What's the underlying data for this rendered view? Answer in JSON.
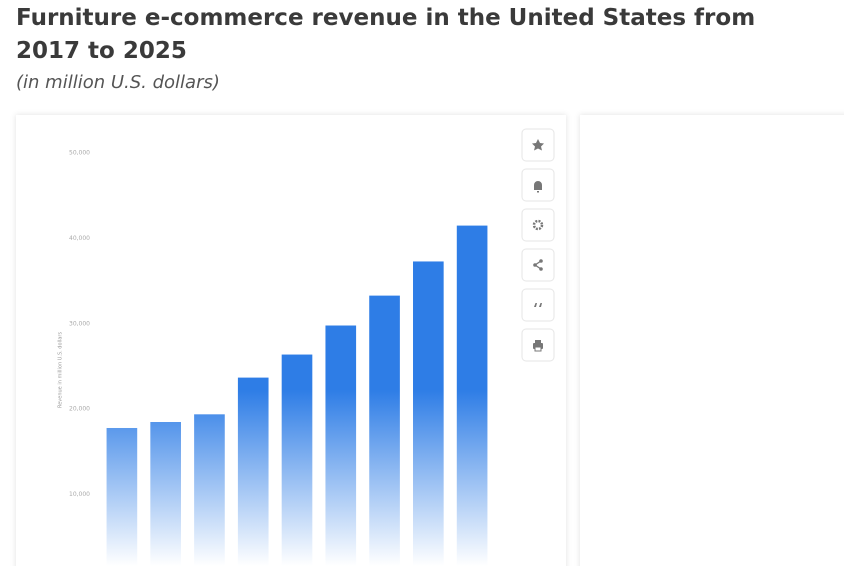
{
  "chart_data": {
    "type": "bar",
    "title": "Furniture e-commerce revenue in the United States from 2017 to 2025",
    "subtitle": "(in million U.S. dollars)",
    "y_label": "Revenue in million U.S. dollars",
    "categories": [
      null,
      null,
      null,
      null,
      null,
      null,
      null,
      null,
      null
    ],
    "values": [
      17800,
      18500,
      19400,
      23700,
      26400,
      29800,
      33300,
      37300,
      41500
    ],
    "color": "#2e7de6",
    "ylim": [
      0,
      50000
    ],
    "yticks": [
      {
        "value": 10000,
        "label": "10,000"
      },
      {
        "value": 20000,
        "label": "20,000"
      },
      {
        "value": 30000,
        "label": "30,000"
      },
      {
        "value": 40000,
        "label": "40,000"
      },
      {
        "value": 50000,
        "label": "50,000"
      }
    ],
    "grid": false
  }
}
